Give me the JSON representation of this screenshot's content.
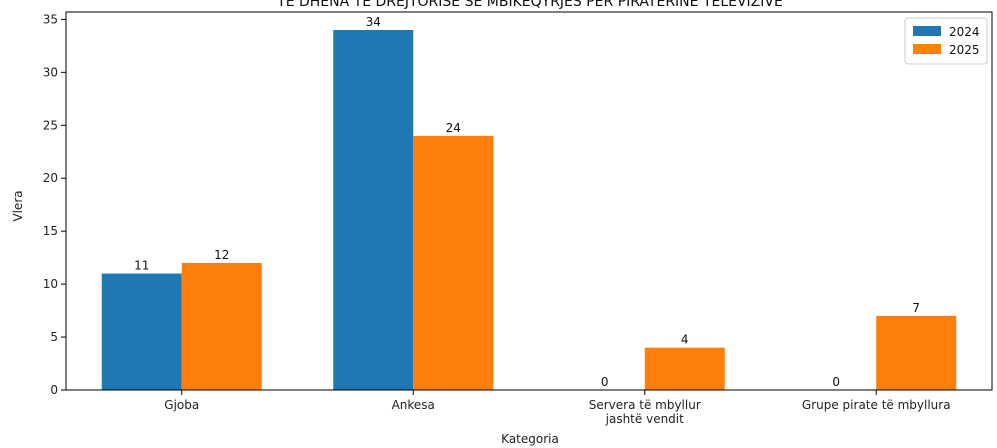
{
  "chart_data": {
    "type": "bar",
    "title": "TË DHËNA TË DREJTORISË SË MBIKËQYRJES PËR PIRATERINË TELEVIZIVE",
    "xlabel": "Kategoria",
    "ylabel": "Vlera",
    "categories": [
      [
        "Gjoba"
      ],
      [
        "Ankesa"
      ],
      [
        "Servera të mbyllur",
        "jashtë vendit"
      ],
      [
        "Grupe pirate të mbyllura"
      ]
    ],
    "series": [
      {
        "name": "2024",
        "color": "#1f77b4",
        "values": [
          11,
          34,
          0,
          0
        ]
      },
      {
        "name": "2025",
        "color": "#ff7f0e",
        "values": [
          12,
          24,
          4,
          7
        ]
      }
    ],
    "ylim": [
      0,
      35.7
    ],
    "yticks": [
      0,
      5,
      10,
      15,
      20,
      25,
      30,
      35
    ],
    "grid": false,
    "legend": "top-right"
  }
}
